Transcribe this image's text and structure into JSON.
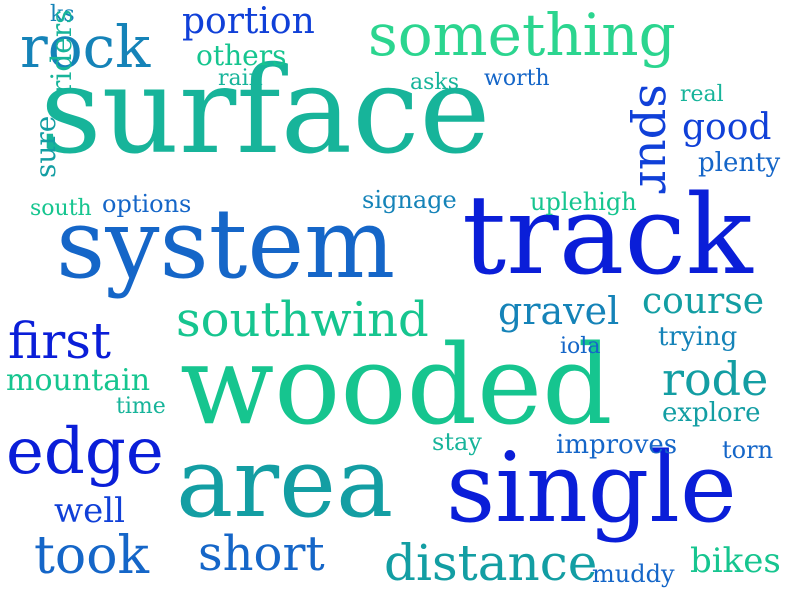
{
  "words": {
    "surface": "surface",
    "system": "system",
    "track": "track",
    "wooded": "wooded",
    "area": "area",
    "single": "single",
    "edge": "edge",
    "something": "something",
    "rock": "rock",
    "southwind": "southwind",
    "portion": "portion",
    "others": "others",
    "ks": "ks",
    "rain": "rain",
    "asks": "asks",
    "worth": "worth",
    "real": "real",
    "good": "good",
    "plenty": "plenty",
    "spur": "spur",
    "riders": "riders",
    "sure": "sure",
    "south": "south",
    "options": "options",
    "signage": "signage",
    "uplehigh": "uplehigh",
    "course": "course",
    "gravel": "gravel",
    "first": "first",
    "trying": "trying",
    "iola": "iola",
    "mountain": "mountain",
    "rode": "rode",
    "time": "time",
    "explore": "explore",
    "stay": "stay",
    "improves": "improves",
    "torn": "torn",
    "well": "well",
    "took": "took",
    "short": "short",
    "distance": "distance",
    "muddy": "muddy",
    "bikes": "bikes"
  },
  "colors": {
    "blue": "#0a1ed8",
    "blue2": "#1040d8",
    "mid": "#1566c8",
    "mid2": "#1583b8",
    "teal": "#139ea3",
    "teal2": "#17b49a",
    "green": "#16c58f",
    "green2": "#2bd58f",
    "background": "#ffffff"
  }
}
